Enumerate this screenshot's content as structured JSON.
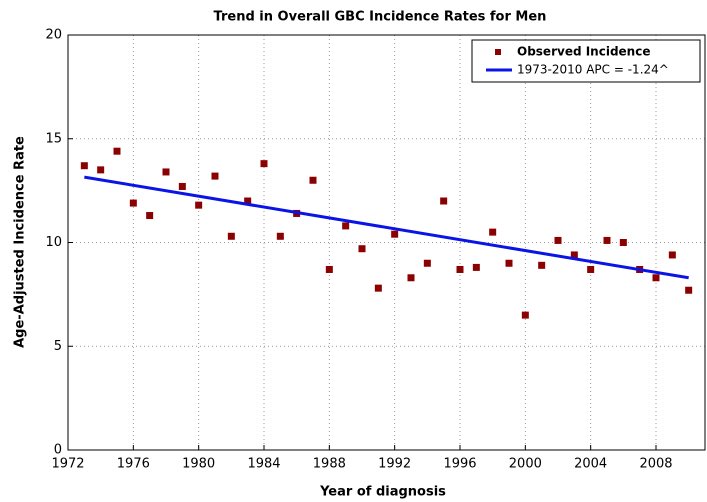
{
  "chart_data": {
    "type": "scatter",
    "title": "Trend in Overall GBC Incidence Rates for Men",
    "x_label": "Year of diagnosis",
    "y_label": "Age-Adjusted Incidence Rate",
    "xlim": [
      1972,
      2011
    ],
    "ylim": [
      0,
      20
    ],
    "xticks": [
      1972,
      1976,
      1980,
      1984,
      1988,
      1992,
      1996,
      2000,
      2004,
      2008
    ],
    "yticks": [
      0,
      5,
      10,
      15,
      20
    ],
    "grid": true,
    "legend": "upper right",
    "series": [
      {
        "name": "Observed Incidence",
        "mode": "markers",
        "color": "#8b0000",
        "x": [
          1973,
          1974,
          1975,
          1976,
          1977,
          1978,
          1979,
          1980,
          1981,
          1982,
          1983,
          1984,
          1985,
          1986,
          1987,
          1988,
          1989,
          1990,
          1991,
          1992,
          1993,
          1994,
          1995,
          1996,
          1997,
          1998,
          1999,
          2000,
          2001,
          2002,
          2003,
          2004,
          2005,
          2006,
          2007,
          2008,
          2009,
          2010
        ],
        "values": [
          13.7,
          13.5,
          14.4,
          11.9,
          11.3,
          13.4,
          12.7,
          11.8,
          13.2,
          10.3,
          12.0,
          13.8,
          10.3,
          11.4,
          13.0,
          8.7,
          10.8,
          9.7,
          7.8,
          10.4,
          8.3,
          9.0,
          12.0,
          8.7,
          8.8,
          10.5,
          9.0,
          6.5,
          8.9,
          10.1,
          9.4,
          8.7,
          10.1,
          10.0,
          8.7,
          8.3,
          9.4,
          7.7
        ]
      },
      {
        "name": "1973-2010 APC  = -1.24^",
        "mode": "line",
        "color": "#0a14e6",
        "x": [
          1973,
          2010
        ],
        "values": [
          13.15,
          8.3
        ]
      }
    ]
  }
}
